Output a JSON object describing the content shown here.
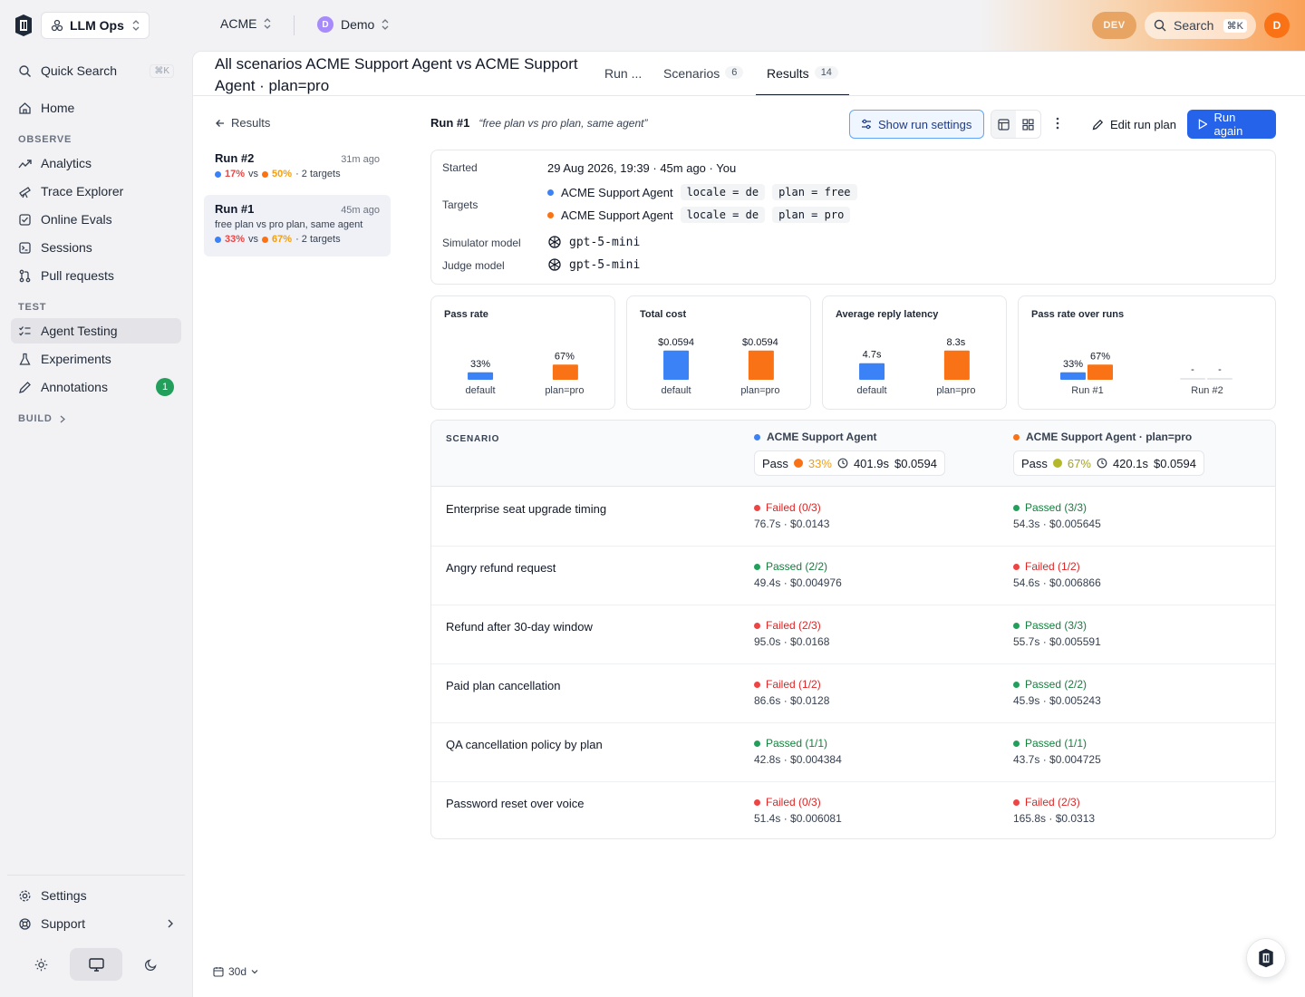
{
  "topbar": {
    "org": "LLM Ops",
    "workspace": "ACME",
    "project": "Demo",
    "project_initial": "D",
    "env_badge": "DEV",
    "search_label": "Search",
    "search_kbd": "⌘K",
    "user_initial": "D"
  },
  "sidebar": {
    "quick_search": "Quick Search",
    "quick_search_kbd": "⌘K",
    "home": "Home",
    "section_observe": "OBSERVE",
    "observe_items": [
      "Analytics",
      "Trace Explorer",
      "Online Evals",
      "Sessions",
      "Pull requests"
    ],
    "section_test": "TEST",
    "test_items": [
      "Agent Testing",
      "Experiments",
      "Annotations"
    ],
    "annotations_count": "1",
    "section_build": "BUILD",
    "settings": "Settings",
    "support": "Support"
  },
  "page": {
    "title": "All scenarios ACME Support Agent vs ACME Support Agent · plan=pro",
    "tabs": [
      {
        "label": "Run ...",
        "count": ""
      },
      {
        "label": "Scenarios",
        "count": "6"
      },
      {
        "label": "Results",
        "count": "14"
      }
    ],
    "back_label": "Results",
    "time_range": "30d"
  },
  "runs": [
    {
      "name": "Run #2",
      "time": "31m ago",
      "desc": "",
      "a_pct": "17%",
      "b_pct": "50%",
      "vs": "vs",
      "targets": "· 2 targets"
    },
    {
      "name": "Run #1",
      "time": "45m ago",
      "desc": "free plan vs pro plan, same agent",
      "a_pct": "33%",
      "b_pct": "67%",
      "vs": "vs",
      "targets": "· 2 targets"
    }
  ],
  "run_detail": {
    "name": "Run #1",
    "quote": "“free plan vs pro plan, same agent”",
    "show_settings": "Show run settings",
    "edit_plan": "Edit run plan",
    "run_again": "Run again",
    "started_label": "Started",
    "started_value": "29 Aug 2026, 19:39 · 45m ago · You",
    "targets_label": "Targets",
    "targets": [
      {
        "name": "ACME Support Agent",
        "chips": [
          "locale = de",
          "plan = free"
        ],
        "color": "#3b82f6"
      },
      {
        "name": "ACME Support Agent",
        "chips": [
          "locale = de",
          "plan = pro"
        ],
        "color": "#f97316"
      }
    ],
    "simulator_label": "Simulator model",
    "simulator_value": "gpt-5-mini",
    "judge_label": "Judge model",
    "judge_value": "gpt-5-mini"
  },
  "chart_data": [
    {
      "type": "bar",
      "title": "Pass rate",
      "categories": [
        "default",
        "plan=pro"
      ],
      "values": [
        33,
        67
      ],
      "labels": [
        "33%",
        "67%"
      ],
      "colors": [
        "#3b82f6",
        "#f97316"
      ],
      "ylim": [
        0,
        100
      ]
    },
    {
      "type": "bar",
      "title": "Total cost",
      "categories": [
        "default",
        "plan=pro"
      ],
      "values": [
        0.0594,
        0.0594
      ],
      "labels": [
        "$0.0594",
        "$0.0594"
      ],
      "colors": [
        "#3b82f6",
        "#f97316"
      ],
      "ylim": [
        0,
        0.0594
      ]
    },
    {
      "type": "bar",
      "title": "Average reply latency",
      "categories": [
        "default",
        "plan=pro"
      ],
      "values": [
        4.7,
        8.3
      ],
      "labels": [
        "4.7s",
        "8.3s"
      ],
      "colors": [
        "#3b82f6",
        "#f97316"
      ],
      "ylim": [
        0,
        8.3
      ]
    },
    {
      "type": "bar",
      "title": "Pass rate over runs",
      "categories": [
        "Run #1",
        "Run #2"
      ],
      "series": [
        {
          "values": [
            33,
            null
          ],
          "labels": [
            "33%",
            "-"
          ],
          "color": "#3b82f6"
        },
        {
          "values": [
            67,
            null
          ],
          "labels": [
            "67%",
            "-"
          ],
          "color": "#f97316"
        }
      ],
      "ylim": [
        0,
        100
      ]
    }
  ],
  "table": {
    "scenario_header": "SCENARIO",
    "targets": [
      {
        "name": "ACME Support Agent",
        "color": "#3b82f6",
        "pass_label": "Pass",
        "pass_pct": "33%",
        "pct_color": "#f59e0b",
        "dot_color": "#f97316",
        "duration": "401.9s",
        "cost": "$0.0594"
      },
      {
        "name": "ACME Support Agent · plan=pro",
        "color": "#f97316",
        "pass_label": "Pass",
        "pass_pct": "67%",
        "pct_color": "#a3a31a",
        "dot_color": "#b5b82a",
        "duration": "420.1s",
        "cost": "$0.0594"
      }
    ],
    "rows": [
      {
        "scenario": "Enterprise seat upgrade timing",
        "a": {
          "status": "fail",
          "label": "Failed (0/3)",
          "metrics": "76.7s · $0.0143"
        },
        "b": {
          "status": "pass",
          "label": "Passed (3/3)",
          "metrics": "54.3s · $0.005645"
        }
      },
      {
        "scenario": "Angry refund request",
        "a": {
          "status": "pass",
          "label": "Passed (2/2)",
          "metrics": "49.4s · $0.004976"
        },
        "b": {
          "status": "fail",
          "label": "Failed (1/2)",
          "metrics": "54.6s · $0.006866"
        }
      },
      {
        "scenario": "Refund after 30-day window",
        "a": {
          "status": "fail",
          "label": "Failed (2/3)",
          "metrics": "95.0s · $0.0168"
        },
        "b": {
          "status": "pass",
          "label": "Passed (3/3)",
          "metrics": "55.7s · $0.005591"
        }
      },
      {
        "scenario": "Paid plan cancellation",
        "a": {
          "status": "fail",
          "label": "Failed (1/2)",
          "metrics": "86.6s · $0.0128"
        },
        "b": {
          "status": "pass",
          "label": "Passed (2/2)",
          "metrics": "45.9s · $0.005243"
        }
      },
      {
        "scenario": "QA cancellation policy by plan",
        "a": {
          "status": "pass",
          "label": "Passed (1/1)",
          "metrics": "42.8s · $0.004384"
        },
        "b": {
          "status": "pass",
          "label": "Passed (1/1)",
          "metrics": "43.7s · $0.004725"
        }
      },
      {
        "scenario": "Password reset over voice",
        "a": {
          "status": "fail",
          "label": "Failed (0/3)",
          "metrics": "51.4s · $0.006081"
        },
        "b": {
          "status": "fail",
          "label": "Failed (2/3)",
          "metrics": "165.8s · $0.0313"
        }
      }
    ]
  }
}
